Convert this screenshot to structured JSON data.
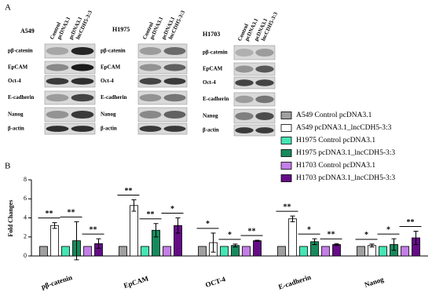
{
  "panel_a": {
    "label": "A",
    "groups": [
      {
        "cell_line": "A549",
        "lanes": [
          [
            "Control",
            "pcDNA3.1"
          ],
          [
            "pcDNA3.1",
            "lncCDH5-3:3"
          ]
        ],
        "rows": [
          "pβ-catenin",
          "EpCAM",
          "Oct-4",
          "E-cadherin",
          "Nanog",
          "β-actin"
        ]
      },
      {
        "cell_line": "H1975",
        "lanes": [
          [
            "Control",
            "pcDNA3.1"
          ],
          [
            "pcDNA3.1",
            "lncCDH5-3:3"
          ]
        ],
        "rows": [
          "pβ-catenin",
          "EpCAM",
          "Oct-4",
          "E-cadherin",
          "Nanog",
          "β-actin"
        ]
      },
      {
        "cell_line": "H1703",
        "lanes": [
          [
            "Control",
            "pcDNA3.1"
          ],
          [
            "pcDNA3.1",
            "lncCDH5-3:3"
          ]
        ],
        "rows": [
          "pβ-catenin",
          "EpCAM",
          "Oct-4",
          "E-cadherin",
          "Nanog",
          "β-actin"
        ]
      }
    ]
  },
  "chart_data": {
    "type": "bar",
    "label": "B",
    "y_label": "Fold Changes",
    "categories": [
      "pβ-catenin",
      "EpCAM",
      "OCT-4",
      "E-cadherin",
      "Nanog"
    ],
    "ylim": [
      0,
      8
    ],
    "yticks": [
      0,
      2,
      4,
      6,
      8
    ],
    "series": [
      {
        "name": "A549 Control pcDNA3.1",
        "color": "#a0a0a0",
        "values": [
          1,
          1,
          1,
          1,
          1
        ],
        "errors": [
          0,
          0,
          0,
          0,
          0
        ]
      },
      {
        "name": "A549 pcDNA3.1_lncCDH5-3:3",
        "color": "#ffffff",
        "values": [
          3.2,
          5.3,
          1.4,
          3.9,
          1.1
        ],
        "errors": [
          0.3,
          0.6,
          1.0,
          0.3,
          0.15
        ]
      },
      {
        "name": "H1975 Control pcDNA3.1",
        "color": "#45e6b4",
        "values": [
          1,
          1,
          1,
          1,
          1
        ],
        "errors": [
          0,
          0,
          0,
          0,
          0
        ]
      },
      {
        "name": "H1975 pcDNA3.1_lncCDH5-3:3",
        "color": "#178a5c",
        "values": [
          1.6,
          2.7,
          1.1,
          1.5,
          1.2
        ],
        "errors": [
          2.0,
          0.7,
          0.15,
          0.3,
          0.6
        ]
      },
      {
        "name": "H1703 Control pcDNA3.1",
        "color": "#c47ee8",
        "values": [
          1,
          1,
          1,
          1,
          1
        ],
        "errors": [
          0,
          0,
          0,
          0,
          0
        ]
      },
      {
        "name": "H1703 pcDNA3.1_lncCDH5-3:3",
        "color": "#650c87",
        "values": [
          1.3,
          3.2,
          1.6,
          1.2,
          1.9
        ],
        "errors": [
          0.5,
          0.8,
          0.05,
          0.1,
          0.7
        ]
      }
    ],
    "significance": [
      [
        "**",
        "**",
        "**"
      ],
      [
        "**",
        "**",
        "*"
      ],
      [
        "*",
        "*",
        "**"
      ],
      [
        "**",
        "*",
        "**"
      ],
      [
        "*",
        "*",
        "**"
      ]
    ]
  }
}
